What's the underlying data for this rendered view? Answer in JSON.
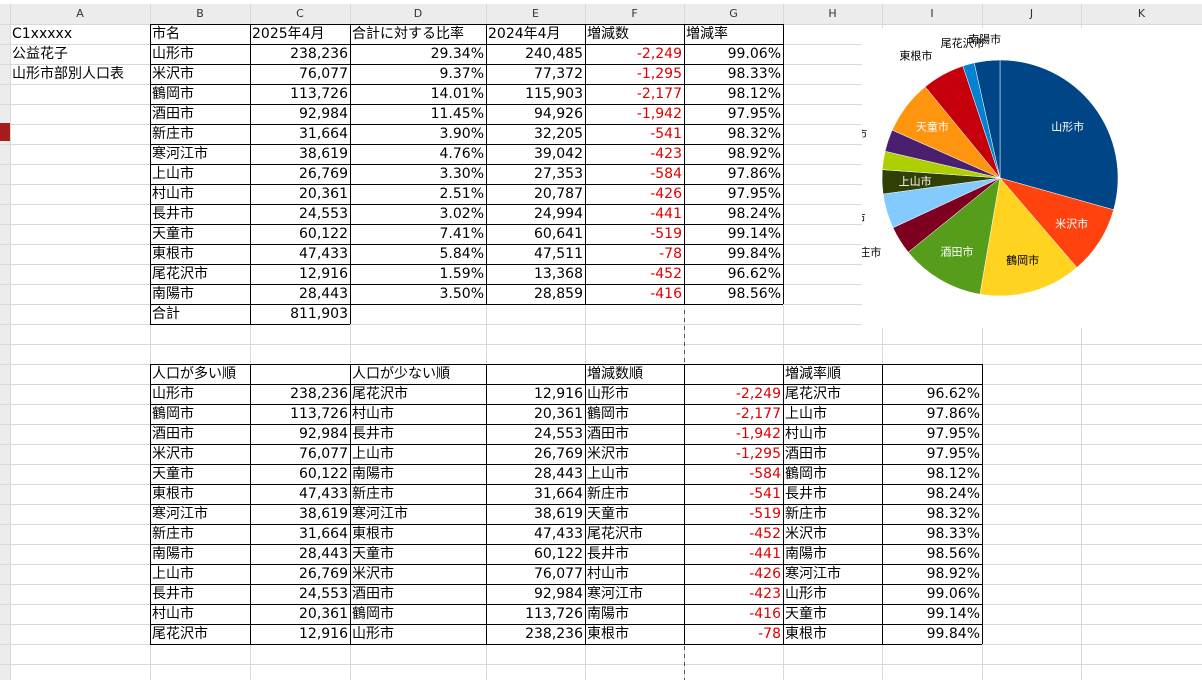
{
  "columns": [
    "A",
    "B",
    "C",
    "D",
    "E",
    "F",
    "G",
    "H",
    "I",
    "J",
    "K"
  ],
  "col_a": [
    "C1xxxxx",
    "公益花子",
    "山形市部別人口表"
  ],
  "table1": {
    "headers": [
      "市名",
      "2025年4月",
      "合計に対する比率",
      "2024年4月",
      "増減数",
      "増減率"
    ],
    "rows": [
      [
        "山形市",
        "238,236",
        "29.34%",
        "240,485",
        "-2,249",
        "99.06%"
      ],
      [
        "米沢市",
        "76,077",
        "9.37%",
        "77,372",
        "-1,295",
        "98.33%"
      ],
      [
        "鶴岡市",
        "113,726",
        "14.01%",
        "115,903",
        "-2,177",
        "98.12%"
      ],
      [
        "酒田市",
        "92,984",
        "11.45%",
        "94,926",
        "-1,942",
        "97.95%"
      ],
      [
        "新庄市",
        "31,664",
        "3.90%",
        "32,205",
        "-541",
        "98.32%"
      ],
      [
        "寒河江市",
        "38,619",
        "4.76%",
        "39,042",
        "-423",
        "98.92%"
      ],
      [
        "上山市",
        "26,769",
        "3.30%",
        "27,353",
        "-584",
        "97.86%"
      ],
      [
        "村山市",
        "20,361",
        "2.51%",
        "20,787",
        "-426",
        "97.95%"
      ],
      [
        "長井市",
        "24,553",
        "3.02%",
        "24,994",
        "-441",
        "98.24%"
      ],
      [
        "天童市",
        "60,122",
        "7.41%",
        "60,641",
        "-519",
        "99.14%"
      ],
      [
        "東根市",
        "47,433",
        "5.84%",
        "47,511",
        "-78",
        "99.84%"
      ],
      [
        "尾花沢市",
        "12,916",
        "1.59%",
        "13,368",
        "-452",
        "96.62%"
      ],
      [
        "南陽市",
        "28,443",
        "3.50%",
        "28,859",
        "-416",
        "98.56%"
      ]
    ],
    "total_label": "合計",
    "total_value": "811,903"
  },
  "table2": {
    "headers": [
      "人口が多い順",
      "人口が少ない順",
      "増減数順",
      "増減率順"
    ],
    "rows": [
      [
        "山形市",
        "238,236",
        "尾花沢市",
        "12,916",
        "山形市",
        "-2,249",
        "尾花沢市",
        "96.62%"
      ],
      [
        "鶴岡市",
        "113,726",
        "村山市",
        "20,361",
        "鶴岡市",
        "-2,177",
        "上山市",
        "97.86%"
      ],
      [
        "酒田市",
        "92,984",
        "長井市",
        "24,553",
        "酒田市",
        "-1,942",
        "村山市",
        "97.95%"
      ],
      [
        "米沢市",
        "76,077",
        "上山市",
        "26,769",
        "米沢市",
        "-1,295",
        "酒田市",
        "97.95%"
      ],
      [
        "天童市",
        "60,122",
        "南陽市",
        "28,443",
        "上山市",
        "-584",
        "鶴岡市",
        "98.12%"
      ],
      [
        "東根市",
        "47,433",
        "新庄市",
        "31,664",
        "新庄市",
        "-541",
        "長井市",
        "98.24%"
      ],
      [
        "寒河江市",
        "38,619",
        "寒河江市",
        "38,619",
        "天童市",
        "-519",
        "新庄市",
        "98.32%"
      ],
      [
        "新庄市",
        "31,664",
        "東根市",
        "47,433",
        "尾花沢市",
        "-452",
        "米沢市",
        "98.33%"
      ],
      [
        "南陽市",
        "28,443",
        "天童市",
        "60,122",
        "長井市",
        "-441",
        "南陽市",
        "98.56%"
      ],
      [
        "上山市",
        "26,769",
        "米沢市",
        "76,077",
        "村山市",
        "-426",
        "寒河江市",
        "98.92%"
      ],
      [
        "長井市",
        "24,553",
        "酒田市",
        "92,984",
        "寒河江市",
        "-423",
        "山形市",
        "99.06%"
      ],
      [
        "村山市",
        "20,361",
        "鶴岡市",
        "113,726",
        "南陽市",
        "-416",
        "天童市",
        "99.14%"
      ],
      [
        "尾花沢市",
        "12,916",
        "山形市",
        "238,236",
        "東根市",
        "-78",
        "東根市",
        "99.84%"
      ]
    ]
  },
  "chart_data": {
    "type": "pie",
    "title": "",
    "categories": [
      "山形市",
      "米沢市",
      "鶴岡市",
      "酒田市",
      "新庄市",
      "寒河江市",
      "上山市",
      "村山市",
      "長井市",
      "天童市",
      "東根市",
      "尾花沢市",
      "南陽市"
    ],
    "values": [
      238236,
      76077,
      113726,
      92984,
      31664,
      38619,
      26769,
      20361,
      24553,
      60122,
      47433,
      12916,
      28443
    ],
    "colors": [
      "#004586",
      "#ff420e",
      "#ffd320",
      "#579d1c",
      "#7e0021",
      "#83caff",
      "#314004",
      "#aecf00",
      "#4b1f6f",
      "#ff950e",
      "#c5000b",
      "#0084d1",
      "#004586"
    ],
    "label_color_inside": "#ffffff",
    "label_color_outside": "#000000"
  },
  "colors": {
    "negative": "#e00000",
    "grid": "#d9d9d9",
    "header_bg": "#ececec"
  }
}
